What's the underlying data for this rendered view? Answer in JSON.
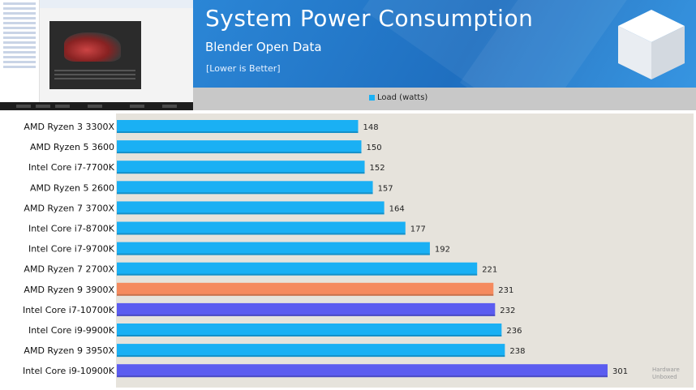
{
  "header": {
    "title": "System Power Consumption",
    "subtitle": "Blender Open Data",
    "note": "[Lower is Better]"
  },
  "legend": {
    "label": "Load (watts)",
    "color": "#1ab0f4"
  },
  "watermark": {
    "line1": "Hardware",
    "line2": "Unboxed"
  },
  "colors": {
    "default": "#1ab0f4",
    "highlight_amd": "#f58a5e",
    "highlight_intel": "#5b5cf0"
  },
  "chart_data": {
    "type": "bar",
    "orientation": "horizontal",
    "xlim": [
      0,
      330
    ],
    "categories": [
      "AMD Ryzen 3 3300X",
      "AMD Ryzen 5 3600",
      "Intel Core i7-7700K",
      "AMD Ryzen 5 2600",
      "AMD Ryzen 7 3700X",
      "Intel Core i7-8700K",
      "Intel Core i7-9700K",
      "AMD Ryzen 7 2700X",
      "AMD Ryzen 9 3900X",
      "Intel Core i7-10700K",
      "Intel Core i9-9900K",
      "AMD Ryzen 9 3950X",
      "Intel Core i9-10900K"
    ],
    "series": [
      {
        "name": "Load (watts)",
        "values": [
          148,
          150,
          152,
          157,
          164,
          177,
          192,
          221,
          231,
          232,
          236,
          238,
          301
        ],
        "colors": [
          "#1ab0f4",
          "#1ab0f4",
          "#1ab0f4",
          "#1ab0f4",
          "#1ab0f4",
          "#1ab0f4",
          "#1ab0f4",
          "#1ab0f4",
          "#f58a5e",
          "#5b5cf0",
          "#1ab0f4",
          "#1ab0f4",
          "#5b5cf0"
        ]
      }
    ],
    "legend_position": "top-center",
    "grid": false
  }
}
